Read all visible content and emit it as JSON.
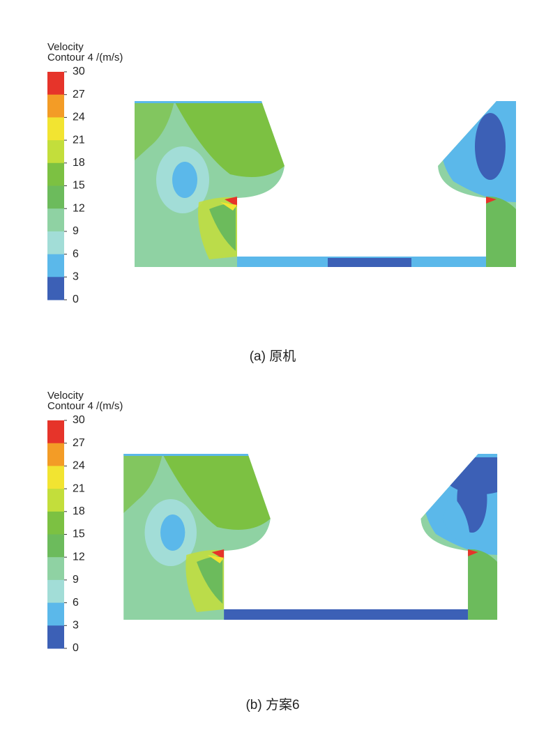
{
  "panels": [
    {
      "legend": {
        "title": "Velocity",
        "unit": "Contour 4 /(m/s)",
        "ticks": [
          30,
          27,
          24,
          21,
          18,
          15,
          12,
          9,
          6,
          3,
          0
        ],
        "colors": [
          "#e6342a",
          "#f39c26",
          "#f2e431",
          "#c3de3b",
          "#7cc142",
          "#6cbb5c",
          "#8fd2a3",
          "#a2ddd7",
          "#5bb8ea",
          "#3c60b6"
        ]
      },
      "caption": "(a) 原机"
    },
    {
      "legend": {
        "title": "Velocity",
        "unit": "Contour 4 /(m/s)",
        "ticks": [
          30,
          27,
          24,
          21,
          18,
          15,
          12,
          9,
          6,
          3,
          0
        ],
        "colors": [
          "#e6342a",
          "#f39c26",
          "#f2e431",
          "#c3de3b",
          "#7cc142",
          "#6cbb5c",
          "#8fd2a3",
          "#a2ddd7",
          "#5bb8ea",
          "#3c60b6"
        ]
      },
      "caption": "(b) 方案6"
    }
  ]
}
